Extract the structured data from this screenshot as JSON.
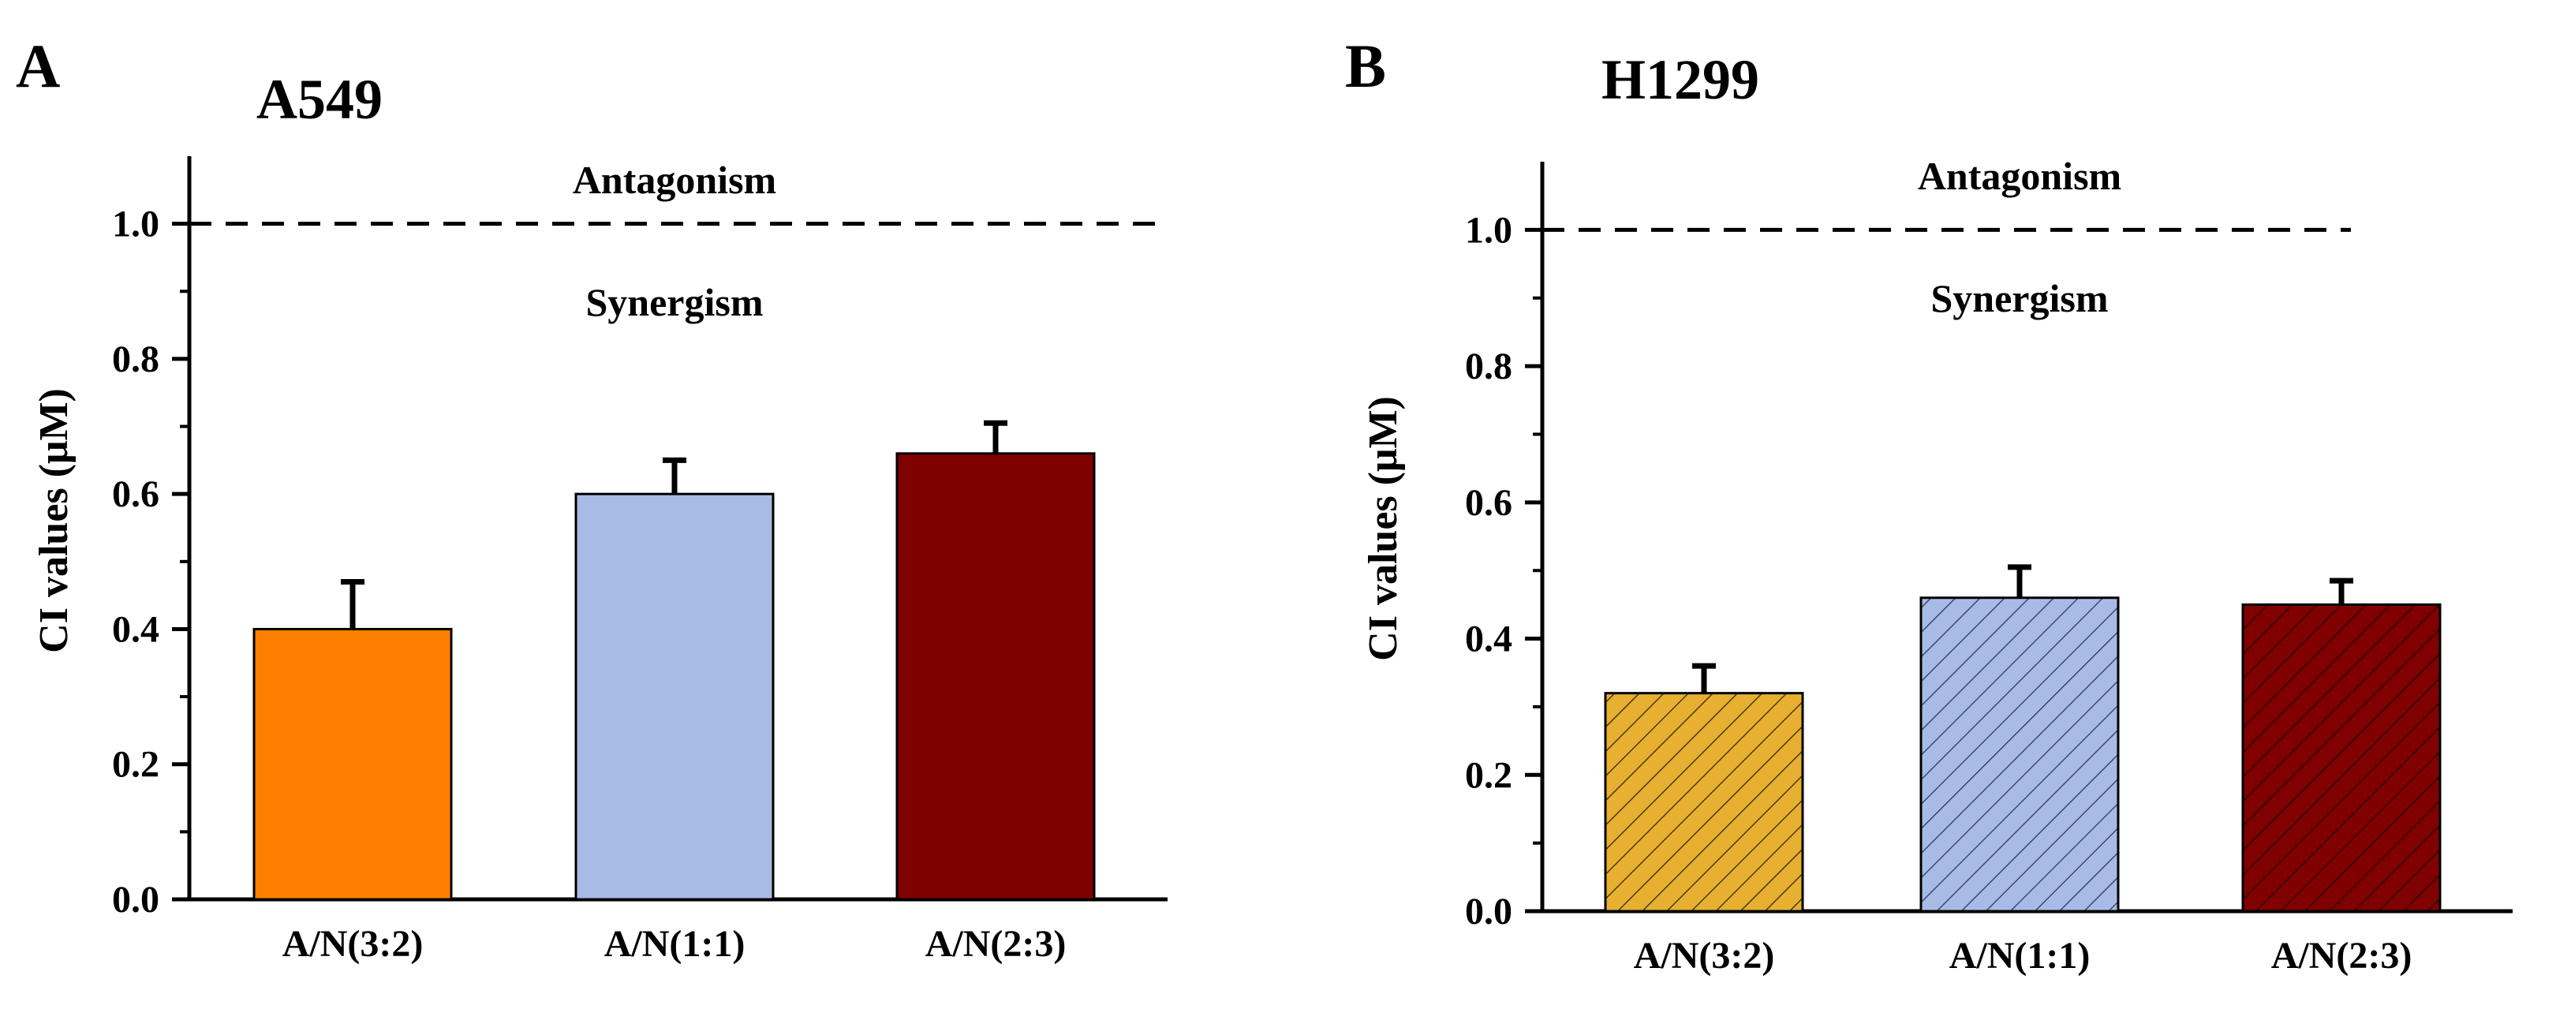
{
  "chart_data": [
    {
      "type": "bar",
      "panel_label": "A",
      "title": "A549",
      "ylabel": "CI values (μM)",
      "xlabel": "",
      "ylim": [
        0,
        1.1
      ],
      "y_ticks": [
        0.0,
        0.2,
        0.4,
        0.6,
        0.8,
        1.0
      ],
      "y_tick_labels": [
        "0.0",
        "0.2",
        "0.4",
        "0.6",
        "0.8",
        "1.0"
      ],
      "categories": [
        "A/N(3:2)",
        "A/N(1:1)",
        "A/N(2:3)"
      ],
      "values": [
        0.4,
        0.6,
        0.66
      ],
      "errors": [
        0.07,
        0.05,
        0.045
      ],
      "colors": [
        "#FF8000",
        "#A8BBE6",
        "#800000"
      ],
      "hatched": false,
      "reference_line": {
        "value": 1.0,
        "style": "dashed"
      },
      "annotations": {
        "above": "Antagonism",
        "below": "Synergism"
      }
    },
    {
      "type": "bar",
      "panel_label": "B",
      "title": "H1299",
      "ylabel": "CI values (μM)",
      "xlabel": "",
      "ylim": [
        0,
        1.1
      ],
      "y_ticks": [
        0.0,
        0.2,
        0.4,
        0.6,
        0.8,
        1.0
      ],
      "y_tick_labels": [
        "0.0",
        "0.2",
        "0.4",
        "0.6",
        "0.8",
        "1.0"
      ],
      "categories": [
        "A/N(3:2)",
        "A/N(1:1)",
        "A/N(2:3)"
      ],
      "values": [
        0.32,
        0.46,
        0.45
      ],
      "errors": [
        0.04,
        0.045,
        0.035
      ],
      "colors": [
        "#E8B030",
        "#A8BBE6",
        "#800000"
      ],
      "hatched": true,
      "reference_line": {
        "value": 1.0,
        "style": "dashed"
      },
      "annotations": {
        "above": "Antagonism",
        "below": "Synergism"
      }
    }
  ]
}
